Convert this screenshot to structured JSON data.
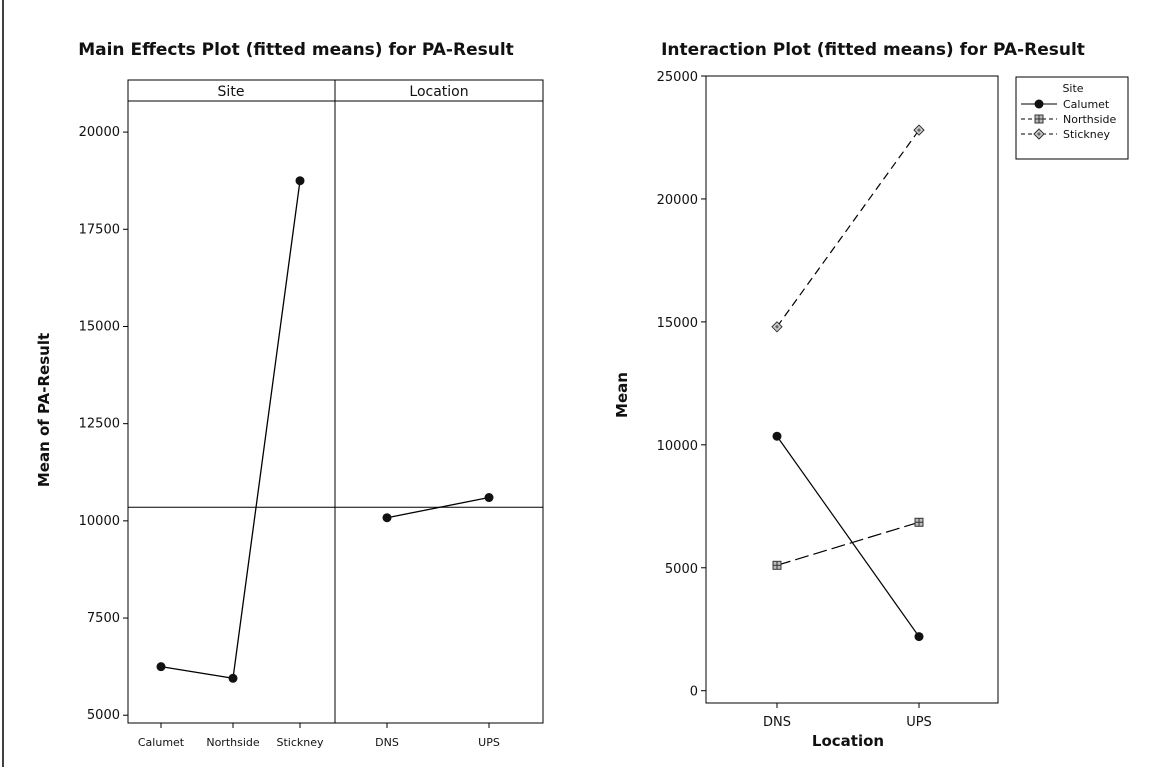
{
  "chart_data": [
    {
      "type": "line",
      "title": "Main Effects Plot (fitted means) for PA-Result",
      "ylabel": "Mean of PA-Result",
      "ylim": [
        4800,
        20800
      ],
      "yticks": [
        5000,
        7500,
        10000,
        12500,
        15000,
        17500,
        20000
      ],
      "grand_mean": 10350,
      "panels": [
        {
          "label": "Site",
          "categories": [
            "Calumet",
            "Northside",
            "Stickney"
          ],
          "values": [
            6250,
            5950,
            18750
          ]
        },
        {
          "label": "Location",
          "categories": [
            "DNS",
            "UPS"
          ],
          "values": [
            10080,
            10600
          ]
        }
      ]
    },
    {
      "type": "line",
      "title": "Interaction Plot (fitted means) for PA-Result",
      "xlabel": "Location",
      "ylabel": "Mean",
      "ylim": [
        -500,
        25000
      ],
      "yticks": [
        0,
        5000,
        10000,
        15000,
        20000,
        25000
      ],
      "categories": [
        "DNS",
        "UPS"
      ],
      "legend_title": "Site",
      "legend_position": "top-right",
      "series": [
        {
          "name": "Calumet",
          "values": [
            10350,
            2200
          ],
          "marker": "circle",
          "dash": "solid"
        },
        {
          "name": "Northside",
          "values": [
            5100,
            6850
          ],
          "marker": "square",
          "dash": "long-dash"
        },
        {
          "name": "Stickney",
          "values": [
            14800,
            22800
          ],
          "marker": "diamond",
          "dash": "dash"
        }
      ]
    }
  ]
}
